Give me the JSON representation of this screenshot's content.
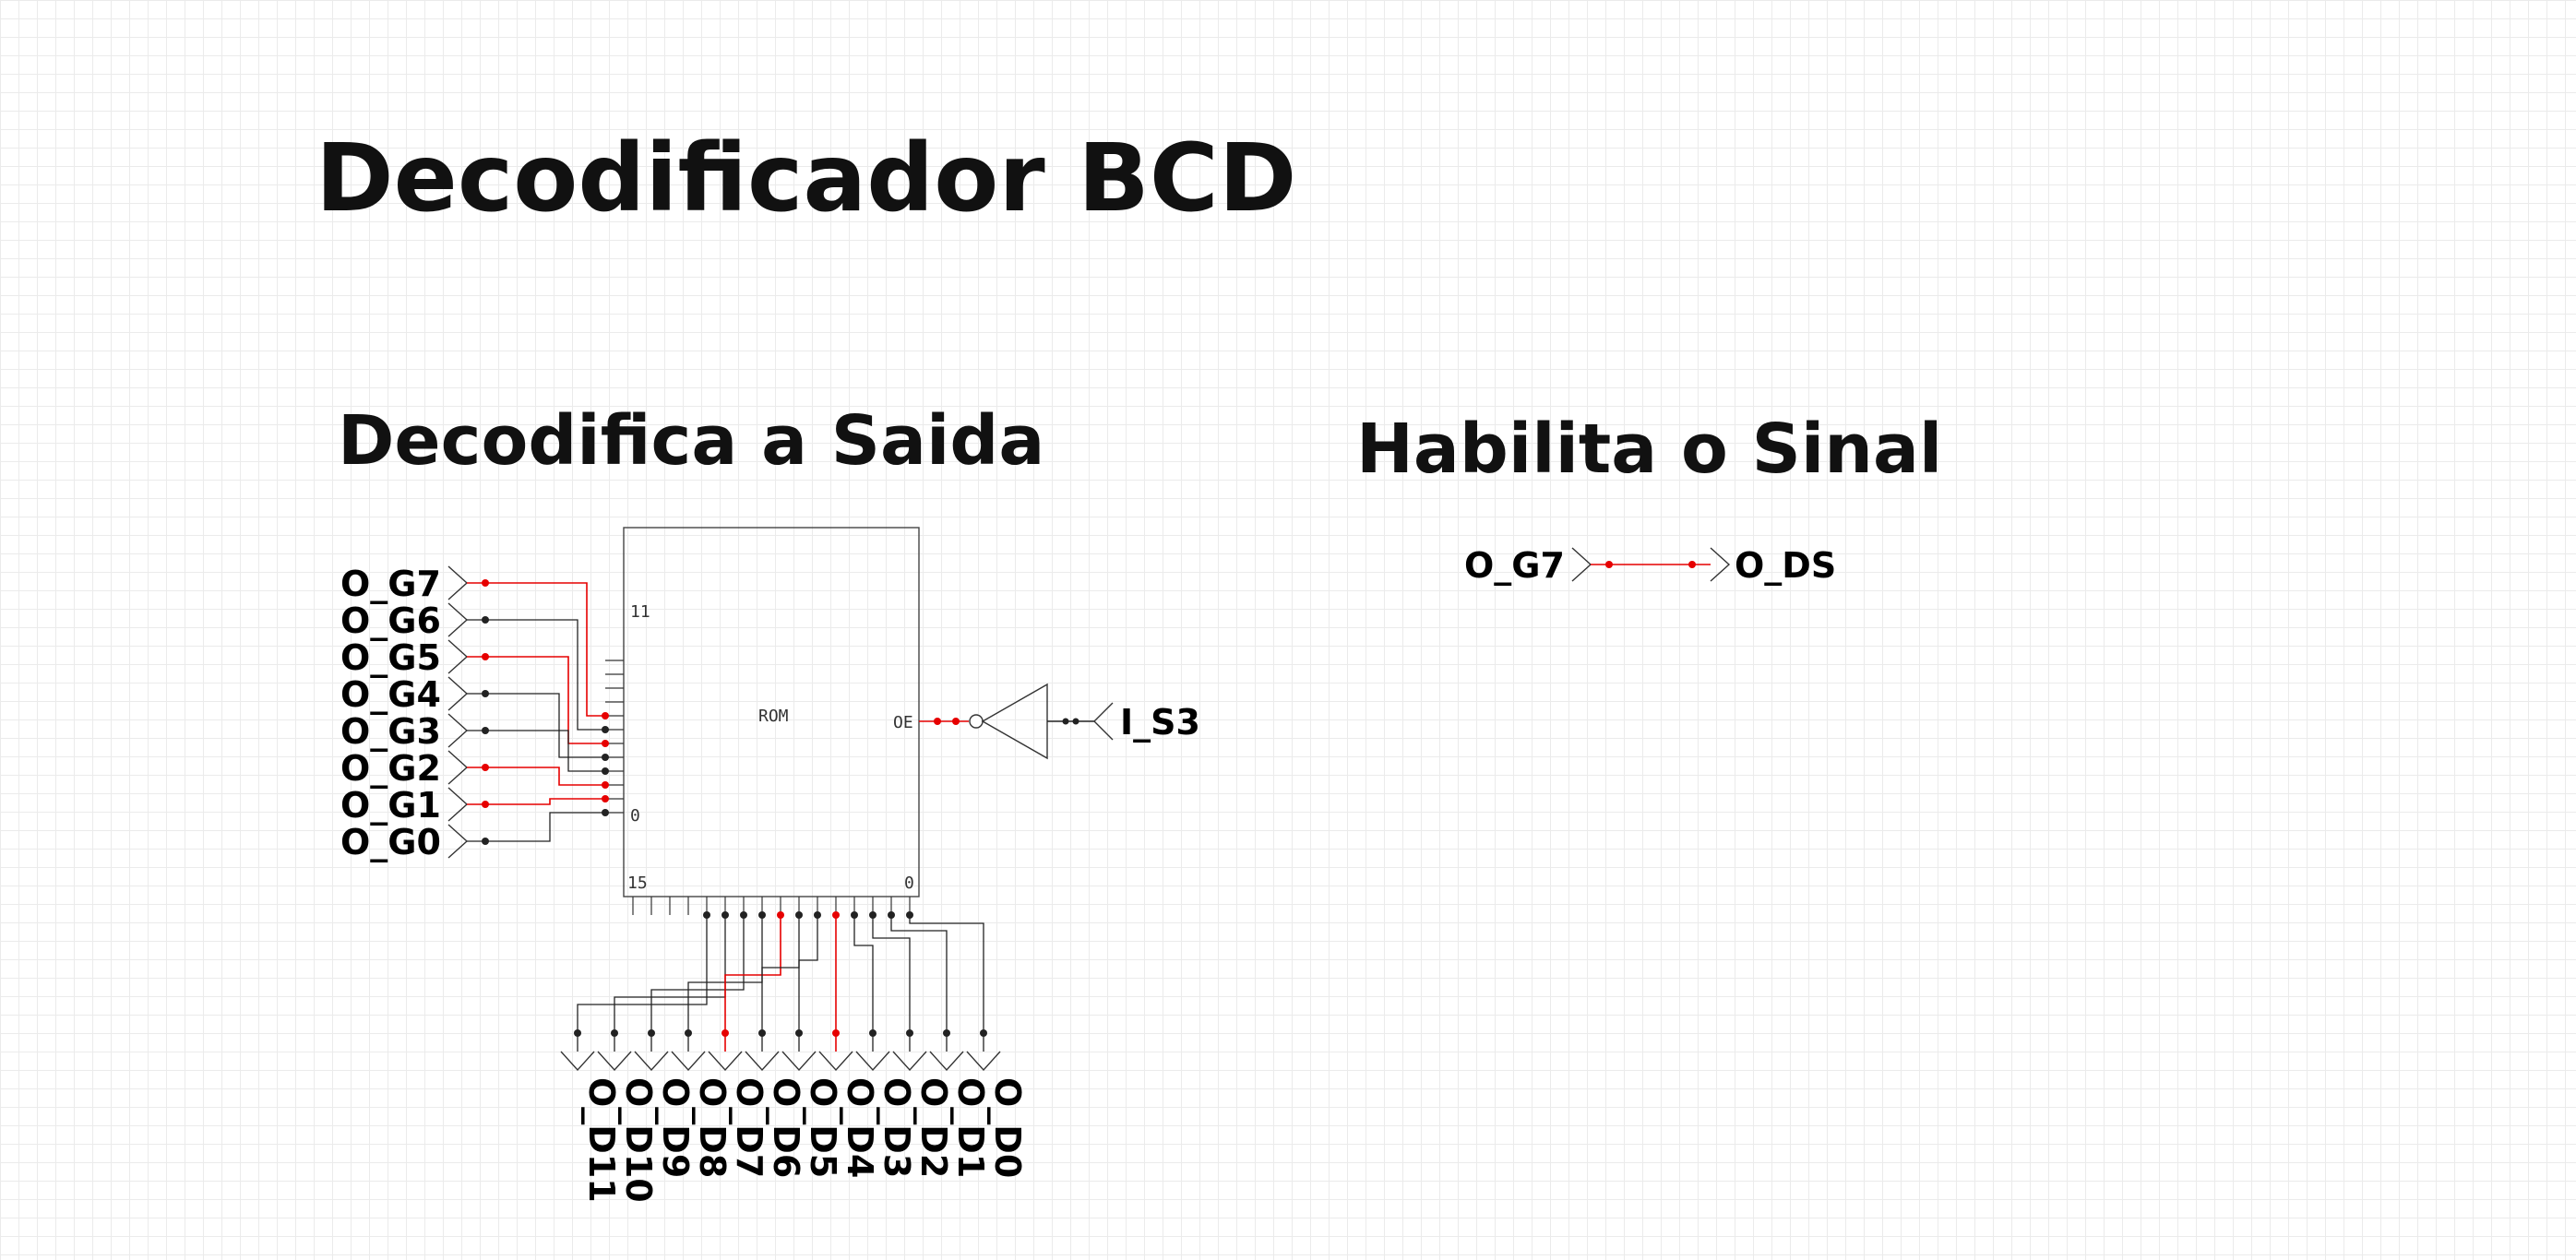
{
  "title": "Decodificador BCD",
  "section_decode": "Decodifica a Saida",
  "section_enable": "Habilita o Sinal",
  "rom": {
    "label": "ROM",
    "oe_label": "OE",
    "address_top_label": "11",
    "address_bottom_label": "0",
    "data_left_label": "15",
    "data_right_label": "0"
  },
  "inputs": [
    {
      "label": "O_G7",
      "active": true
    },
    {
      "label": "O_G6",
      "active": false
    },
    {
      "label": "O_G5",
      "active": true
    },
    {
      "label": "O_G4",
      "active": false
    },
    {
      "label": "O_G3",
      "active": false
    },
    {
      "label": "O_G2",
      "active": true
    },
    {
      "label": "O_G1",
      "active": true
    },
    {
      "label": "O_G0",
      "active": false
    }
  ],
  "outputs": [
    {
      "label": "O_D11",
      "active": false
    },
    {
      "label": "O_D10",
      "active": false
    },
    {
      "label": "O_D9",
      "active": false
    },
    {
      "label": "O_D8",
      "active": false
    },
    {
      "label": "O_D7",
      "active": true
    },
    {
      "label": "O_D6",
      "active": false
    },
    {
      "label": "O_D5",
      "active": false
    },
    {
      "label": "O_D4",
      "active": true
    },
    {
      "label": "O_D3",
      "active": false
    },
    {
      "label": "O_D2",
      "active": false
    },
    {
      "label": "O_D1",
      "active": false
    },
    {
      "label": "O_D0",
      "active": false
    }
  ],
  "enable_input": {
    "label": "I_S3",
    "active": false
  },
  "oe_active": true,
  "passthrough": {
    "from": "O_G7",
    "to": "O_DS",
    "active": true
  },
  "colors": {
    "active_wire": "#e60000",
    "inactive_wire": "#222222"
  }
}
